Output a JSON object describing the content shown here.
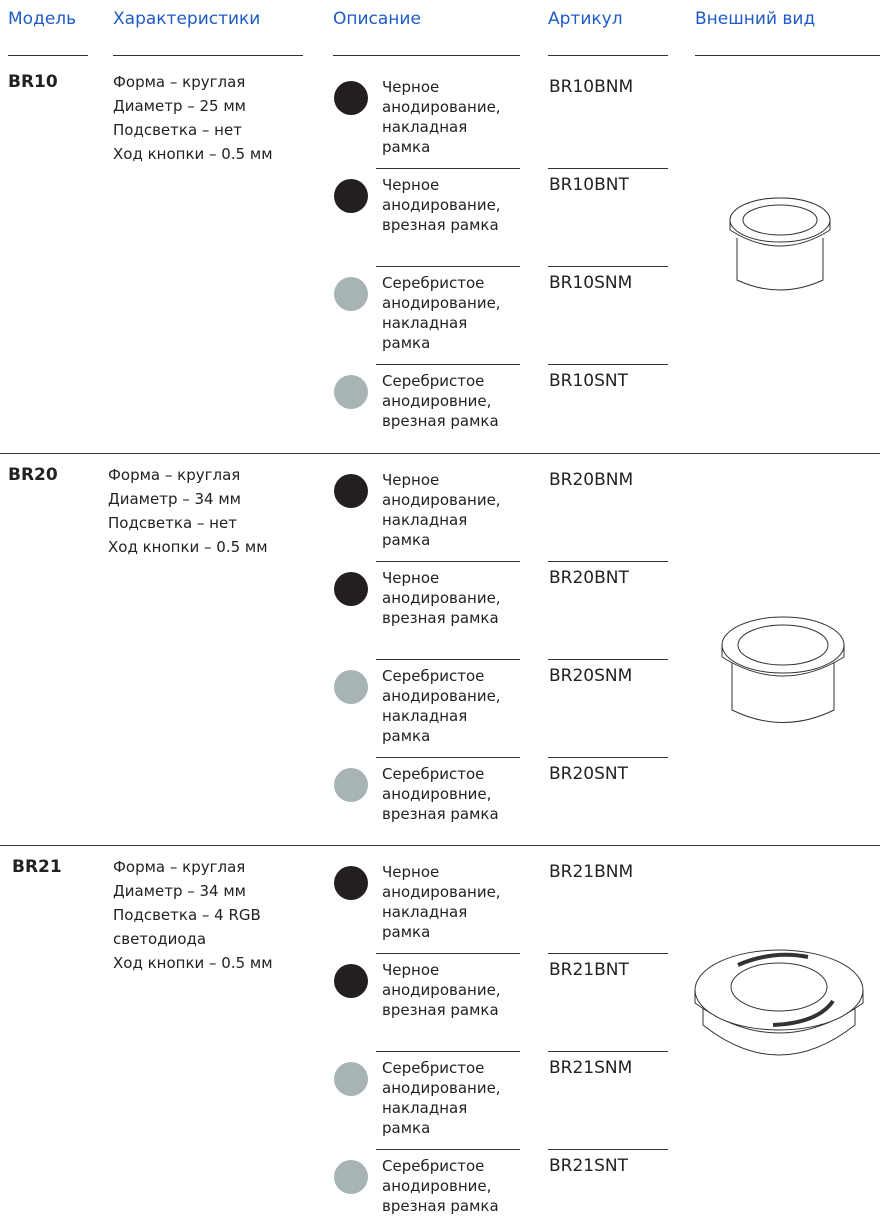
{
  "header": {
    "columns": [
      "Модель",
      "Характеристики",
      "Описание",
      "Артикул",
      "Внешний вид"
    ]
  },
  "models": [
    {
      "name": "BR10",
      "specs": [
        "Форма – круглая",
        "Диаметр – 25 мм",
        "Подсветка – нет",
        "Ход кнопки – 0.5 мм"
      ],
      "variants": [
        {
          "color": "#231f20",
          "description": [
            "Черное",
            "анодирование,",
            "накладная",
            "рамка"
          ],
          "article": "BR10BNM"
        },
        {
          "color": "#231f20",
          "description": [
            "Черное",
            "анодирование,",
            "врезная рамка"
          ],
          "article": "BR10BNT"
        },
        {
          "color": "#a8b3b5",
          "description": [
            "Серебристое",
            "анодирование,",
            "накладная",
            "рамка"
          ],
          "article": "BR10SNM"
        },
        {
          "color": "#a8b3b5",
          "description": [
            "Серебристое",
            "анодировние,",
            "врезная рамка"
          ],
          "article": "BR10SNT"
        }
      ]
    },
    {
      "name": "BR20",
      "specs": [
        "Форма – круглая",
        "Диаметр – 34 мм",
        "Подсветка – нет",
        "Ход кнопки – 0.5 мм"
      ],
      "variants": [
        {
          "color": "#231f20",
          "description": [
            "Черное",
            "анодирование,",
            "накладная",
            "рамка"
          ],
          "article": "BR20BNM"
        },
        {
          "color": "#231f20",
          "description": [
            "Черное",
            "анодирование,",
            "врезная рамка"
          ],
          "article": "BR20BNT"
        },
        {
          "color": "#a8b3b5",
          "description": [
            "Серебристое",
            "анодирование,",
            "накладная",
            "рамка"
          ],
          "article": "BR20SNM"
        },
        {
          "color": "#a8b3b5",
          "description": [
            "Серебристое",
            "анодировние,",
            "врезная рамка"
          ],
          "article": "BR20SNT"
        }
      ]
    },
    {
      "name": "BR21",
      "specs": [
        "Форма – круглая",
        "Диаметр – 34 мм",
        "Подсветка – 4 RGB светодиода",
        "Ход кнопки – 0.5 мм"
      ],
      "variants": [
        {
          "color": "#231f20",
          "description": [
            "Черное",
            "анодирование,",
            "накладная",
            "рамка"
          ],
          "article": "BR21BNM"
        },
        {
          "color": "#231f20",
          "description": [
            "Черное",
            "анодирование,",
            "врезная рамка"
          ],
          "article": "BR21BNT"
        },
        {
          "color": "#a8b3b5",
          "description": [
            "Серебристое",
            "анодирование,",
            "накладная",
            "рамка"
          ],
          "article": "BR21SNM"
        },
        {
          "color": "#a8b3b5",
          "description": [
            "Серебристое",
            "анодировние,",
            "врезная рамка"
          ],
          "article": "BR21SNT"
        }
      ]
    }
  ]
}
